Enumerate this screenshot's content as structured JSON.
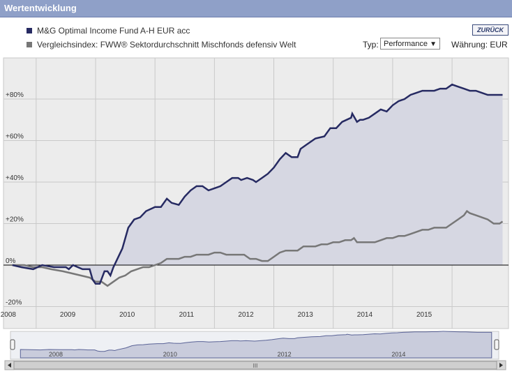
{
  "header": {
    "title": "Wertentwicklung"
  },
  "toolbar": {
    "back_label": "ZURÜCK",
    "type_label": "Typ:",
    "type_selected": "Performance",
    "currency_label": "Währung: EUR"
  },
  "colors": {
    "fund": "#262a62",
    "index": "#777777",
    "area": "#d6d7e2",
    "plot_bg": "#ececec",
    "header": "#8fa0c8"
  },
  "chart_data": {
    "type": "area",
    "series": [
      {
        "name": "M&G Optimal Income Fund A-H EUR acc",
        "points": [
          [
            2007.6,
            0
          ],
          [
            2007.75,
            -1
          ],
          [
            2007.95,
            -2
          ],
          [
            2008.1,
            0
          ],
          [
            2008.3,
            -1
          ],
          [
            2008.5,
            -1
          ],
          [
            2008.55,
            -2
          ],
          [
            2008.62,
            0
          ],
          [
            2008.7,
            -1
          ],
          [
            2008.78,
            -2
          ],
          [
            2008.9,
            -2
          ],
          [
            2008.95,
            -7
          ],
          [
            2009.0,
            -9
          ],
          [
            2009.07,
            -9
          ],
          [
            2009.15,
            -3
          ],
          [
            2009.2,
            -3
          ],
          [
            2009.25,
            -5
          ],
          [
            2009.3,
            -1
          ],
          [
            2009.45,
            8
          ],
          [
            2009.55,
            18
          ],
          [
            2009.65,
            22
          ],
          [
            2009.75,
            23
          ],
          [
            2009.85,
            26
          ],
          [
            2010.0,
            28
          ],
          [
            2010.1,
            28
          ],
          [
            2010.2,
            32
          ],
          [
            2010.28,
            30
          ],
          [
            2010.4,
            29
          ],
          [
            2010.5,
            33
          ],
          [
            2010.6,
            36
          ],
          [
            2010.7,
            38
          ],
          [
            2010.8,
            38
          ],
          [
            2010.9,
            36
          ],
          [
            2011.0,
            37
          ],
          [
            2011.1,
            38
          ],
          [
            2011.2,
            40
          ],
          [
            2011.3,
            42
          ],
          [
            2011.4,
            42
          ],
          [
            2011.45,
            41
          ],
          [
            2011.55,
            42
          ],
          [
            2011.65,
            41
          ],
          [
            2011.7,
            40
          ],
          [
            2011.8,
            42
          ],
          [
            2011.9,
            44
          ],
          [
            2012.0,
            47
          ],
          [
            2012.1,
            51
          ],
          [
            2012.2,
            54
          ],
          [
            2012.3,
            52
          ],
          [
            2012.35,
            52
          ],
          [
            2012.4,
            52
          ],
          [
            2012.45,
            56
          ],
          [
            2012.55,
            58
          ],
          [
            2012.7,
            61
          ],
          [
            2012.85,
            62
          ],
          [
            2012.95,
            66
          ],
          [
            2013.05,
            66
          ],
          [
            2013.15,
            69
          ],
          [
            2013.3,
            71
          ],
          [
            2013.32,
            73
          ],
          [
            2013.4,
            69
          ],
          [
            2013.45,
            70
          ],
          [
            2013.5,
            70
          ],
          [
            2013.6,
            71
          ],
          [
            2013.7,
            73
          ],
          [
            2013.8,
            75
          ],
          [
            2013.9,
            74
          ],
          [
            2014.0,
            77
          ],
          [
            2014.1,
            79
          ],
          [
            2014.2,
            80
          ],
          [
            2014.3,
            82
          ],
          [
            2014.4,
            83
          ],
          [
            2014.5,
            84
          ],
          [
            2014.6,
            84
          ],
          [
            2014.7,
            84
          ],
          [
            2014.8,
            85
          ],
          [
            2014.9,
            85
          ],
          [
            2015.0,
            87
          ],
          [
            2015.1,
            86
          ],
          [
            2015.2,
            85
          ],
          [
            2015.3,
            84
          ],
          [
            2015.4,
            84
          ],
          [
            2015.5,
            83
          ],
          [
            2015.6,
            82
          ],
          [
            2015.7,
            82
          ],
          [
            2015.85,
            82
          ]
        ]
      },
      {
        "name": "Vergleichsindex: FWW® Sektordurchschnitt Mischfonds defensiv Welt",
        "points": [
          [
            2007.6,
            0
          ],
          [
            2007.8,
            0
          ],
          [
            2007.95,
            -1
          ],
          [
            2008.1,
            -1
          ],
          [
            2008.25,
            -2
          ],
          [
            2008.45,
            -3
          ],
          [
            2008.6,
            -4
          ],
          [
            2008.75,
            -5
          ],
          [
            2008.9,
            -6
          ],
          [
            2009.0,
            -8
          ],
          [
            2009.1,
            -8
          ],
          [
            2009.2,
            -10
          ],
          [
            2009.3,
            -8
          ],
          [
            2009.4,
            -6
          ],
          [
            2009.5,
            -5
          ],
          [
            2009.6,
            -3
          ],
          [
            2009.7,
            -2
          ],
          [
            2009.8,
            -1
          ],
          [
            2009.9,
            -1
          ],
          [
            2010.0,
            0
          ],
          [
            2010.1,
            1
          ],
          [
            2010.2,
            3
          ],
          [
            2010.3,
            3
          ],
          [
            2010.4,
            3
          ],
          [
            2010.5,
            4
          ],
          [
            2010.6,
            4
          ],
          [
            2010.7,
            5
          ],
          [
            2010.8,
            5
          ],
          [
            2010.9,
            5
          ],
          [
            2011.0,
            6
          ],
          [
            2011.1,
            6
          ],
          [
            2011.2,
            5
          ],
          [
            2011.3,
            5
          ],
          [
            2011.4,
            5
          ],
          [
            2011.5,
            5
          ],
          [
            2011.6,
            3
          ],
          [
            2011.7,
            3
          ],
          [
            2011.8,
            2
          ],
          [
            2011.9,
            2
          ],
          [
            2012.0,
            4
          ],
          [
            2012.1,
            6
          ],
          [
            2012.2,
            7
          ],
          [
            2012.3,
            7
          ],
          [
            2012.4,
            7
          ],
          [
            2012.5,
            9
          ],
          [
            2012.6,
            9
          ],
          [
            2012.7,
            9
          ],
          [
            2012.8,
            10
          ],
          [
            2012.9,
            10
          ],
          [
            2013.0,
            11
          ],
          [
            2013.1,
            11
          ],
          [
            2013.2,
            12
          ],
          [
            2013.3,
            12
          ],
          [
            2013.35,
            13
          ],
          [
            2013.4,
            11
          ],
          [
            2013.5,
            11
          ],
          [
            2013.6,
            11
          ],
          [
            2013.7,
            11
          ],
          [
            2013.8,
            12
          ],
          [
            2013.9,
            13
          ],
          [
            2014.0,
            13
          ],
          [
            2014.1,
            14
          ],
          [
            2014.2,
            14
          ],
          [
            2014.3,
            15
          ],
          [
            2014.4,
            16
          ],
          [
            2014.5,
            17
          ],
          [
            2014.6,
            17
          ],
          [
            2014.7,
            18
          ],
          [
            2014.8,
            18
          ],
          [
            2014.9,
            18
          ],
          [
            2015.0,
            20
          ],
          [
            2015.1,
            22
          ],
          [
            2015.2,
            24
          ],
          [
            2015.25,
            26
          ],
          [
            2015.3,
            25
          ],
          [
            2015.4,
            24
          ],
          [
            2015.5,
            23
          ],
          [
            2015.6,
            22
          ],
          [
            2015.7,
            20
          ],
          [
            2015.8,
            20
          ],
          [
            2015.85,
            21
          ]
        ]
      }
    ],
    "y_ticks": [
      80,
      60,
      40,
      20,
      0,
      -20
    ],
    "y_tick_labels": [
      "+80%",
      "+60%",
      "+40%",
      "+20%",
      "0%",
      "-20%"
    ],
    "x_ticks": [
      2008,
      2009,
      2010,
      2011,
      2012,
      2013,
      2014,
      2015
    ],
    "x_tick_labels": [
      "2008",
      "2009",
      "2010",
      "2011",
      "2012",
      "2013",
      "2014",
      "2015"
    ],
    "xlim": [
      2007.45,
      2015.95
    ],
    "ylim": [
      -20,
      100
    ],
    "grid": true,
    "navigator": {
      "x_ticks": [
        2008,
        2010,
        2012,
        2014
      ],
      "x_tick_labels": [
        "2008",
        "2010",
        "2012",
        "2014"
      ],
      "scroll_thumb": "III"
    }
  }
}
